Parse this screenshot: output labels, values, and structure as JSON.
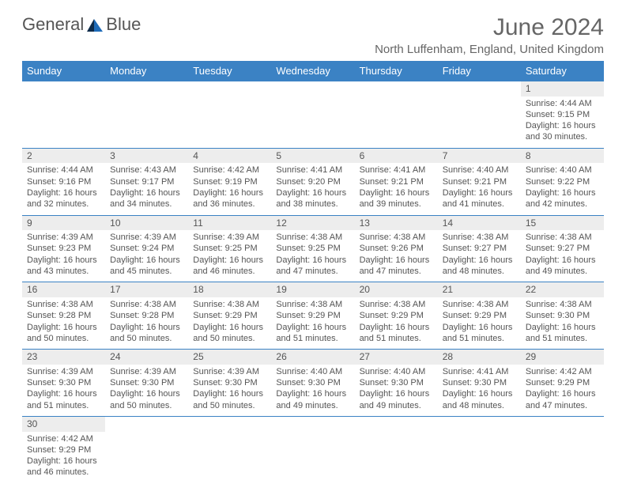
{
  "logo": {
    "part1": "General",
    "part2": "Blue"
  },
  "title": "June 2024",
  "subtitle": "North Luffenham, England, United Kingdom",
  "colors": {
    "header_bg": "#3b82c4",
    "daynum_bg": "#ededed",
    "row_border": "#3b82c4",
    "text": "#555555",
    "logo_blue": "#1e6bb8"
  },
  "day_labels": [
    "Sunday",
    "Monday",
    "Tuesday",
    "Wednesday",
    "Thursday",
    "Friday",
    "Saturday"
  ],
  "weeks": [
    {
      "nums": [
        "",
        "",
        "",
        "",
        "",
        "",
        "1"
      ],
      "cells": [
        "",
        "",
        "",
        "",
        "",
        "",
        "Sunrise: 4:44 AM\nSunset: 9:15 PM\nDaylight: 16 hours and 30 minutes."
      ]
    },
    {
      "nums": [
        "2",
        "3",
        "4",
        "5",
        "6",
        "7",
        "8"
      ],
      "cells": [
        "Sunrise: 4:44 AM\nSunset: 9:16 PM\nDaylight: 16 hours and 32 minutes.",
        "Sunrise: 4:43 AM\nSunset: 9:17 PM\nDaylight: 16 hours and 34 minutes.",
        "Sunrise: 4:42 AM\nSunset: 9:19 PM\nDaylight: 16 hours and 36 minutes.",
        "Sunrise: 4:41 AM\nSunset: 9:20 PM\nDaylight: 16 hours and 38 minutes.",
        "Sunrise: 4:41 AM\nSunset: 9:21 PM\nDaylight: 16 hours and 39 minutes.",
        "Sunrise: 4:40 AM\nSunset: 9:21 PM\nDaylight: 16 hours and 41 minutes.",
        "Sunrise: 4:40 AM\nSunset: 9:22 PM\nDaylight: 16 hours and 42 minutes."
      ]
    },
    {
      "nums": [
        "9",
        "10",
        "11",
        "12",
        "13",
        "14",
        "15"
      ],
      "cells": [
        "Sunrise: 4:39 AM\nSunset: 9:23 PM\nDaylight: 16 hours and 43 minutes.",
        "Sunrise: 4:39 AM\nSunset: 9:24 PM\nDaylight: 16 hours and 45 minutes.",
        "Sunrise: 4:39 AM\nSunset: 9:25 PM\nDaylight: 16 hours and 46 minutes.",
        "Sunrise: 4:38 AM\nSunset: 9:25 PM\nDaylight: 16 hours and 47 minutes.",
        "Sunrise: 4:38 AM\nSunset: 9:26 PM\nDaylight: 16 hours and 47 minutes.",
        "Sunrise: 4:38 AM\nSunset: 9:27 PM\nDaylight: 16 hours and 48 minutes.",
        "Sunrise: 4:38 AM\nSunset: 9:27 PM\nDaylight: 16 hours and 49 minutes."
      ]
    },
    {
      "nums": [
        "16",
        "17",
        "18",
        "19",
        "20",
        "21",
        "22"
      ],
      "cells": [
        "Sunrise: 4:38 AM\nSunset: 9:28 PM\nDaylight: 16 hours and 50 minutes.",
        "Sunrise: 4:38 AM\nSunset: 9:28 PM\nDaylight: 16 hours and 50 minutes.",
        "Sunrise: 4:38 AM\nSunset: 9:29 PM\nDaylight: 16 hours and 50 minutes.",
        "Sunrise: 4:38 AM\nSunset: 9:29 PM\nDaylight: 16 hours and 51 minutes.",
        "Sunrise: 4:38 AM\nSunset: 9:29 PM\nDaylight: 16 hours and 51 minutes.",
        "Sunrise: 4:38 AM\nSunset: 9:29 PM\nDaylight: 16 hours and 51 minutes.",
        "Sunrise: 4:38 AM\nSunset: 9:30 PM\nDaylight: 16 hours and 51 minutes."
      ]
    },
    {
      "nums": [
        "23",
        "24",
        "25",
        "26",
        "27",
        "28",
        "29"
      ],
      "cells": [
        "Sunrise: 4:39 AM\nSunset: 9:30 PM\nDaylight: 16 hours and 51 minutes.",
        "Sunrise: 4:39 AM\nSunset: 9:30 PM\nDaylight: 16 hours and 50 minutes.",
        "Sunrise: 4:39 AM\nSunset: 9:30 PM\nDaylight: 16 hours and 50 minutes.",
        "Sunrise: 4:40 AM\nSunset: 9:30 PM\nDaylight: 16 hours and 49 minutes.",
        "Sunrise: 4:40 AM\nSunset: 9:30 PM\nDaylight: 16 hours and 49 minutes.",
        "Sunrise: 4:41 AM\nSunset: 9:30 PM\nDaylight: 16 hours and 48 minutes.",
        "Sunrise: 4:42 AM\nSunset: 9:29 PM\nDaylight: 16 hours and 47 minutes."
      ]
    },
    {
      "nums": [
        "30",
        "",
        "",
        "",
        "",
        "",
        ""
      ],
      "cells": [
        "Sunrise: 4:42 AM\nSunset: 9:29 PM\nDaylight: 16 hours and 46 minutes.",
        "",
        "",
        "",
        "",
        "",
        ""
      ]
    }
  ]
}
